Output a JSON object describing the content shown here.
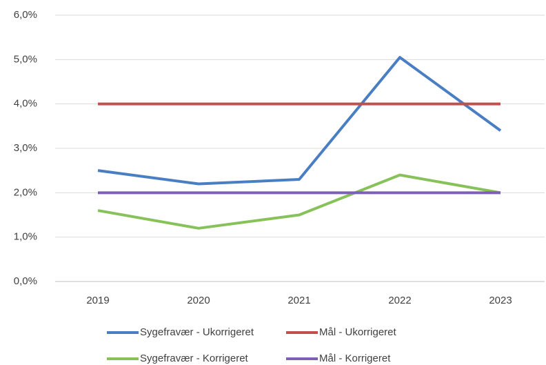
{
  "chart_data": {
    "type": "line",
    "categories": [
      "2019",
      "2020",
      "2021",
      "2022",
      "2023"
    ],
    "series": [
      {
        "name": "Sygefravær - Ukorrigeret",
        "color": "#4a7ec2",
        "values": [
          2.5,
          2.2,
          2.3,
          5.05,
          3.4
        ]
      },
      {
        "name": "Mål - Ukorrigeret",
        "color": "#c0504d",
        "values": [
          4,
          4,
          4,
          4,
          4
        ]
      },
      {
        "name": "Sygefravær - Korrigeret",
        "color": "#86c15a",
        "values": [
          1.6,
          1.2,
          1.5,
          2.4,
          2.0
        ]
      },
      {
        "name": "Mål - Korrigeret",
        "color": "#7d5fb3",
        "values": [
          2,
          2,
          2,
          2,
          2
        ]
      }
    ],
    "ylim": [
      0,
      6
    ],
    "yticks": [
      {
        "value": 0,
        "label": "0,0%"
      },
      {
        "value": 1,
        "label": "1,0%"
      },
      {
        "value": 2,
        "label": "2,0%"
      },
      {
        "value": 3,
        "label": "3,0%"
      },
      {
        "value": 4,
        "label": "4,0%"
      },
      {
        "value": 5,
        "label": "5,0%"
      },
      {
        "value": 6,
        "label": "6,0%"
      }
    ],
    "grid": true,
    "legend": "bottom"
  }
}
